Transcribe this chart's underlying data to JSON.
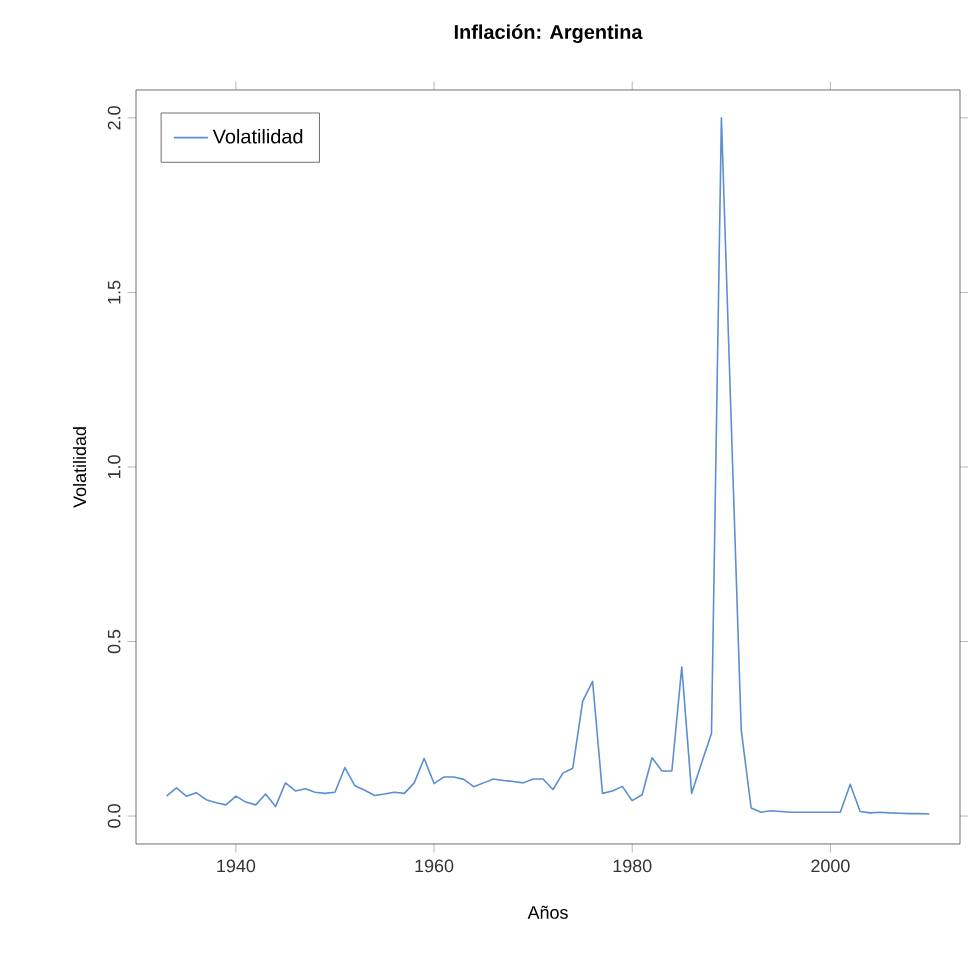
{
  "chart_data": {
    "type": "line",
    "title": "Inflación: Argentina",
    "xlabel": "Años",
    "ylabel": "Volatilidad",
    "xlim": [
      1929.92,
      2013.08
    ],
    "ylim": [
      -0.08,
      2.08
    ],
    "xticks": [
      1940,
      1960,
      1980,
      2000
    ],
    "yticks": [
      {
        "value": 0,
        "label": "0.0"
      },
      {
        "value": 0.5,
        "label": "0.5"
      },
      {
        "value": 1,
        "label": "1.0"
      },
      {
        "value": 1.5,
        "label": "1.5"
      },
      {
        "value": 2,
        "label": "2.0"
      }
    ],
    "legend": "top left",
    "grid": false,
    "marker": "none",
    "line_style": "solid",
    "x": [
      1933,
      1934,
      1935,
      1936,
      1937,
      1938,
      1939,
      1940,
      1941,
      1942,
      1943,
      1944,
      1945,
      1946,
      1947,
      1948,
      1949,
      1950,
      1951,
      1952,
      1953,
      1954,
      1955,
      1956,
      1957,
      1958,
      1959,
      1960,
      1961,
      1962,
      1963,
      1964,
      1965,
      1966,
      1967,
      1968,
      1969,
      1970,
      1971,
      1972,
      1973,
      1974,
      1975,
      1976,
      1977,
      1978,
      1979,
      1980,
      1981,
      1982,
      1983,
      1984,
      1985,
      1986,
      1987,
      1988,
      1989,
      1990,
      1991,
      1992,
      1993,
      1994,
      1995,
      1996,
      1997,
      1998,
      1999,
      2000,
      2001,
      2002,
      2003,
      2004,
      2005,
      2006,
      2007,
      2008,
      2009,
      2010
    ],
    "series": [
      {
        "name": "Volatilidad",
        "color": "#5b8fd0",
        "values": [
          0.057,
          0.081,
          0.057,
          0.067,
          0.047,
          0.038,
          0.032,
          0.057,
          0.04,
          0.032,
          0.063,
          0.027,
          0.095,
          0.072,
          0.078,
          0.068,
          0.065,
          0.068,
          0.139,
          0.087,
          0.074,
          0.059,
          0.063,
          0.068,
          0.065,
          0.095,
          0.165,
          0.093,
          0.112,
          0.112,
          0.105,
          0.084,
          0.095,
          0.106,
          0.102,
          0.099,
          0.095,
          0.106,
          0.106,
          0.076,
          0.123,
          0.137,
          0.329,
          0.386,
          0.065,
          0.072,
          0.085,
          0.044,
          0.061,
          0.167,
          0.129,
          0.129,
          0.427,
          0.065,
          0.152,
          0.237,
          2.0,
          1.12,
          0.247,
          0.023,
          0.011,
          0.015,
          0.013,
          0.011,
          0.011,
          0.011,
          0.011,
          0.011,
          0.011,
          0.091,
          0.013,
          0.009,
          0.011,
          0.009,
          0.008,
          0.007,
          0.007,
          0.006
        ]
      }
    ]
  }
}
